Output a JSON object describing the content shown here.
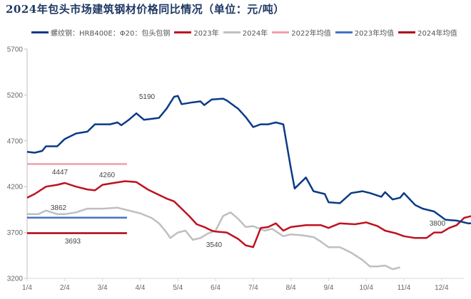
{
  "title": "2024年包头市场建筑钢材价格同比情况（单位：元/吨）",
  "legend": [
    {
      "label": "螺纹钢：HRB400E：Φ20：包头包钢",
      "color": "#0b3a86"
    },
    {
      "label": "2023年",
      "color": "#c0111f"
    },
    {
      "label": "2024年",
      "color": "#bfbfbf"
    },
    {
      "label": "2022年均值",
      "color": "#f0a0a8"
    },
    {
      "label": "2023年均值",
      "color": "#4472c4"
    },
    {
      "label": "2024年均值",
      "color": "#b00010"
    }
  ],
  "chart_data": {
    "type": "line",
    "title": "2024年包头市场建筑钢材价格同比情况（单位：元/吨）",
    "xlabel": "",
    "ylabel": "元/吨",
    "ylim": [
      3200,
      5700
    ],
    "yticks": [
      3200,
      3700,
      4200,
      4700,
      5200,
      5700
    ],
    "xticks": [
      "1/4",
      "2/4",
      "3/4",
      "4/4",
      "5/4",
      "6/4",
      "7/4",
      "8/4",
      "9/4",
      "10/4",
      "11/4",
      "12/4"
    ],
    "grid": false,
    "legend_position": "top",
    "series": [
      {
        "name": "螺纹钢：HRB400E：Φ20：包头包钢",
        "color": "#0b3a86",
        "points": [
          [
            0,
            4580
          ],
          [
            0.2,
            4570
          ],
          [
            0.4,
            4590
          ],
          [
            0.5,
            4640
          ],
          [
            0.8,
            4640
          ],
          [
            1.0,
            4720
          ],
          [
            1.3,
            4780
          ],
          [
            1.6,
            4800
          ],
          [
            1.8,
            4880
          ],
          [
            2.2,
            4880
          ],
          [
            2.4,
            4900
          ],
          [
            2.5,
            4870
          ],
          [
            2.7,
            4930
          ],
          [
            2.9,
            5000
          ],
          [
            3.1,
            4930
          ],
          [
            3.5,
            4950
          ],
          [
            3.7,
            5050
          ],
          [
            3.9,
            5180
          ],
          [
            4.0,
            5190
          ],
          [
            4.1,
            5100
          ],
          [
            4.4,
            5120
          ],
          [
            4.6,
            5130
          ],
          [
            4.7,
            5090
          ],
          [
            4.9,
            5150
          ],
          [
            5.2,
            5160
          ],
          [
            5.3,
            5140
          ],
          [
            5.6,
            5050
          ],
          [
            5.8,
            4960
          ],
          [
            6.0,
            4850
          ],
          [
            6.2,
            4880
          ],
          [
            6.4,
            4880
          ],
          [
            6.6,
            4900
          ],
          [
            6.8,
            4880
          ],
          [
            7.0,
            4400
          ],
          [
            7.1,
            4180
          ],
          [
            7.4,
            4300
          ],
          [
            7.6,
            4150
          ],
          [
            7.9,
            4120
          ],
          [
            8.0,
            4030
          ],
          [
            8.3,
            4020
          ],
          [
            8.6,
            4130
          ],
          [
            8.9,
            4150
          ],
          [
            9.1,
            4130
          ],
          [
            9.4,
            4090
          ],
          [
            9.5,
            4140
          ],
          [
            9.7,
            4060
          ],
          [
            9.9,
            4080
          ],
          [
            10.0,
            4130
          ],
          [
            10.3,
            4000
          ],
          [
            10.5,
            3960
          ],
          [
            10.8,
            3930
          ],
          [
            11.1,
            3840
          ],
          [
            11.4,
            3830
          ],
          [
            11.7,
            3800
          ],
          [
            11.9,
            3800
          ],
          [
            12.0,
            3930
          ],
          [
            12.3,
            3950
          ],
          [
            12.6,
            4020
          ],
          [
            12.8,
            4060
          ]
        ],
        "annotations": [
          {
            "x": 4.0,
            "y": 5190,
            "text": "5190"
          },
          {
            "x": 11.7,
            "y": 3800,
            "text": "3800"
          }
        ]
      },
      {
        "name": "2023年",
        "color": "#c0111f",
        "points": [
          [
            0,
            4080
          ],
          [
            0.2,
            4120
          ],
          [
            0.5,
            4200
          ],
          [
            0.8,
            4220
          ],
          [
            1.0,
            4240
          ],
          [
            1.3,
            4200
          ],
          [
            1.6,
            4170
          ],
          [
            1.8,
            4160
          ],
          [
            2.0,
            4220
          ],
          [
            2.3,
            4240
          ],
          [
            2.6,
            4260
          ],
          [
            2.9,
            4250
          ],
          [
            3.2,
            4170
          ],
          [
            3.4,
            4130
          ],
          [
            3.7,
            4070
          ],
          [
            3.9,
            4040
          ],
          [
            4.1,
            3960
          ],
          [
            4.3,
            3880
          ],
          [
            4.5,
            3790
          ],
          [
            4.7,
            3760
          ],
          [
            4.9,
            3720
          ],
          [
            5.0,
            3710
          ],
          [
            5.3,
            3700
          ],
          [
            5.6,
            3630
          ],
          [
            5.8,
            3560
          ],
          [
            6.0,
            3540
          ],
          [
            6.2,
            3750
          ],
          [
            6.4,
            3760
          ],
          [
            6.6,
            3800
          ],
          [
            6.8,
            3720
          ],
          [
            7.0,
            3760
          ],
          [
            7.4,
            3780
          ],
          [
            7.8,
            3780
          ],
          [
            8.0,
            3750
          ],
          [
            8.3,
            3800
          ],
          [
            8.7,
            3790
          ],
          [
            9.0,
            3810
          ],
          [
            9.3,
            3770
          ],
          [
            9.5,
            3720
          ],
          [
            9.8,
            3690
          ],
          [
            10.0,
            3660
          ],
          [
            10.3,
            3640
          ],
          [
            10.6,
            3640
          ],
          [
            10.8,
            3700
          ],
          [
            11.0,
            3700
          ],
          [
            11.2,
            3750
          ],
          [
            11.4,
            3780
          ],
          [
            11.6,
            3860
          ],
          [
            11.8,
            3880
          ],
          [
            12.0,
            3880
          ],
          [
            12.3,
            3880
          ],
          [
            12.6,
            3870
          ],
          [
            12.8,
            3880
          ]
        ],
        "annotations": [
          {
            "x": 2.6,
            "y": 4260,
            "text": "4260"
          },
          {
            "x": 6.0,
            "y": 3540,
            "text": "3540"
          }
        ]
      },
      {
        "name": "2024年",
        "color": "#bfbfbf",
        "points": [
          [
            0,
            3900
          ],
          [
            0.3,
            3900
          ],
          [
            0.5,
            3940
          ],
          [
            0.8,
            3900
          ],
          [
            1.0,
            3900
          ],
          [
            1.3,
            3920
          ],
          [
            1.6,
            3960
          ],
          [
            2.0,
            3960
          ],
          [
            2.4,
            3970
          ],
          [
            2.7,
            3940
          ],
          [
            3.0,
            3910
          ],
          [
            3.3,
            3860
          ],
          [
            3.5,
            3800
          ],
          [
            3.7,
            3700
          ],
          [
            3.8,
            3640
          ],
          [
            4.0,
            3700
          ],
          [
            4.2,
            3720
          ],
          [
            4.4,
            3620
          ],
          [
            4.6,
            3640
          ],
          [
            4.8,
            3690
          ],
          [
            5.0,
            3720
          ],
          [
            5.2,
            3880
          ],
          [
            5.4,
            3920
          ],
          [
            5.6,
            3850
          ],
          [
            5.8,
            3760
          ],
          [
            6.0,
            3770
          ],
          [
            6.3,
            3720
          ],
          [
            6.5,
            3740
          ],
          [
            6.8,
            3660
          ],
          [
            7.0,
            3680
          ],
          [
            7.3,
            3670
          ],
          [
            7.6,
            3650
          ],
          [
            7.8,
            3600
          ],
          [
            8.0,
            3540
          ],
          [
            8.3,
            3540
          ],
          [
            8.6,
            3480
          ],
          [
            8.9,
            3400
          ],
          [
            9.1,
            3330
          ],
          [
            9.3,
            3330
          ],
          [
            9.5,
            3340
          ],
          [
            9.7,
            3300
          ],
          [
            9.9,
            3320
          ]
        ],
        "annotations": [
          {
            "x": 1.6,
            "y": 3862,
            "text": "3862"
          }
        ]
      },
      {
        "name": "2022年均值",
        "color": "#f0a0a8",
        "value": 4447,
        "x_range": [
          0,
          2.65
        ],
        "annotations": [
          {
            "text": "4447"
          }
        ]
      },
      {
        "name": "2023年均值",
        "color": "#4472c4",
        "value": 3862,
        "x_range": [
          0,
          2.65
        ],
        "annotations": [
          {
            "text": "3862"
          }
        ]
      },
      {
        "name": "2024年均值",
        "color": "#b00010",
        "value": 3693,
        "x_range": [
          0,
          2.65
        ],
        "annotations": [
          {
            "text": "3693"
          }
        ]
      }
    ]
  }
}
